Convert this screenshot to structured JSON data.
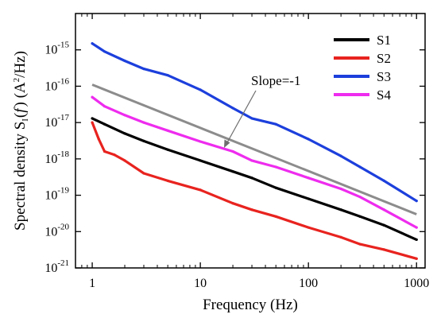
{
  "chart_data": {
    "type": "line",
    "xscale": "log",
    "yscale": "log",
    "xlabel": "Frequency (Hz)",
    "ylabel": {
      "prefix": "Spectral density S",
      "sub": "I",
      "mid1": "(",
      "italic": "f",
      "mid2": ") (A",
      "sup": "2",
      "suffix": "/Hz)"
    },
    "xlim": [
      0.7,
      1200
    ],
    "ylim": [
      1e-21,
      1e-14
    ],
    "x_ticks": [
      {
        "value": 1,
        "label": "1"
      },
      {
        "value": 10,
        "label": "10"
      },
      {
        "value": 100,
        "label": "100"
      },
      {
        "value": 1000,
        "label": "1000"
      }
    ],
    "y_ticks": [
      {
        "value": 1e-15,
        "base": "10",
        "exp": "-15"
      },
      {
        "value": 1e-16,
        "base": "10",
        "exp": "-16"
      },
      {
        "value": 1e-17,
        "base": "10",
        "exp": "-17"
      },
      {
        "value": 1e-18,
        "base": "10",
        "exp": "-18"
      },
      {
        "value": 1e-19,
        "base": "10",
        "exp": "-19"
      },
      {
        "value": 1e-20,
        "base": "10",
        "exp": "-20"
      },
      {
        "value": 1e-21,
        "base": "10",
        "exp": "-21"
      }
    ],
    "legend_position": "top-right",
    "series": [
      {
        "name": "S1",
        "color": "#000000",
        "x": [
          1,
          1.3,
          2,
          3,
          5,
          10,
          20,
          30,
          50,
          100,
          200,
          300,
          500,
          1000
        ],
        "y": [
          1.3e-17,
          9e-18,
          5e-18,
          3.1e-18,
          1.8e-18,
          9e-19,
          4.5e-19,
          3e-19,
          1.6e-19,
          8e-20,
          4e-20,
          2.6e-20,
          1.5e-20,
          6e-21
        ]
      },
      {
        "name": "S2",
        "color": "#e8231f",
        "x": [
          1,
          1.15,
          1.3,
          1.6,
          2,
          3,
          5,
          10,
          20,
          30,
          50,
          100,
          200,
          300,
          500,
          1000
        ],
        "y": [
          1e-17,
          3.5e-18,
          1.6e-18,
          1.3e-18,
          9e-19,
          4e-19,
          2.5e-19,
          1.4e-19,
          6e-20,
          4e-20,
          2.6e-20,
          1.3e-20,
          7e-21,
          4.5e-21,
          3.2e-21,
          1.8e-21
        ]
      },
      {
        "name": "S3",
        "color": "#1c3fdc",
        "x": [
          1,
          1.3,
          2,
          3,
          5,
          10,
          20,
          30,
          50,
          100,
          200,
          300,
          500,
          1000
        ],
        "y": [
          1.5e-15,
          9e-16,
          5e-16,
          3e-16,
          2e-16,
          8e-17,
          2.5e-17,
          1.3e-17,
          9e-18,
          3.5e-18,
          1.2e-18,
          6e-19,
          2.5e-19,
          7e-20
        ]
      },
      {
        "name": "S4",
        "color": "#ee2cee",
        "x": [
          1,
          1.3,
          2,
          3,
          5,
          10,
          20,
          30,
          50,
          100,
          200,
          300,
          500,
          1000
        ],
        "y": [
          5e-17,
          2.8e-17,
          1.6e-17,
          1e-17,
          6e-18,
          3e-18,
          1.6e-18,
          9e-19,
          6e-19,
          3e-19,
          1.5e-19,
          9e-20,
          4e-20,
          1.3e-20
        ]
      }
    ],
    "reference_line": {
      "label": "Slope=-1",
      "color": "#8c8c8c",
      "x": [
        1,
        1000
      ],
      "y": [
        1.1e-16,
        3e-20
      ]
    }
  }
}
